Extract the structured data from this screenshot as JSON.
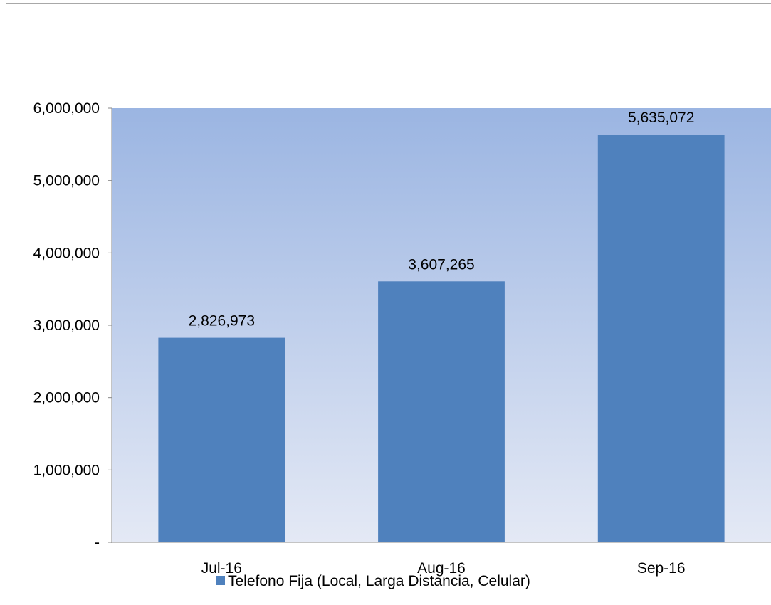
{
  "chart_data": {
    "type": "bar",
    "categories": [
      "Jul-16",
      "Aug-16",
      "Sep-16"
    ],
    "series": [
      {
        "name": "Telefono Fija (Local, Larga Distancia, Celular)",
        "values": [
          2826973,
          3607265,
          5635072
        ]
      }
    ],
    "data_labels": [
      "2,826,973",
      "3,607,265",
      "5,635,072"
    ],
    "y_ticks": [
      {
        "value": 0,
        "label": "-"
      },
      {
        "value": 1000000,
        "label": "1,000,000"
      },
      {
        "value": 2000000,
        "label": "2,000,000"
      },
      {
        "value": 3000000,
        "label": "3,000,000"
      },
      {
        "value": 4000000,
        "label": "4,000,000"
      },
      {
        "value": 5000000,
        "label": "5,000,000"
      },
      {
        "value": 6000000,
        "label": "6,000,000"
      }
    ],
    "ylim": [
      0,
      6000000
    ],
    "grid": false,
    "legend": "bottom",
    "colors": {
      "bar": "#4f81bd",
      "plot_bg_top": "#9bb5e2",
      "plot_bg_bottom": "#e4e9f5",
      "axis": "#888888"
    }
  }
}
